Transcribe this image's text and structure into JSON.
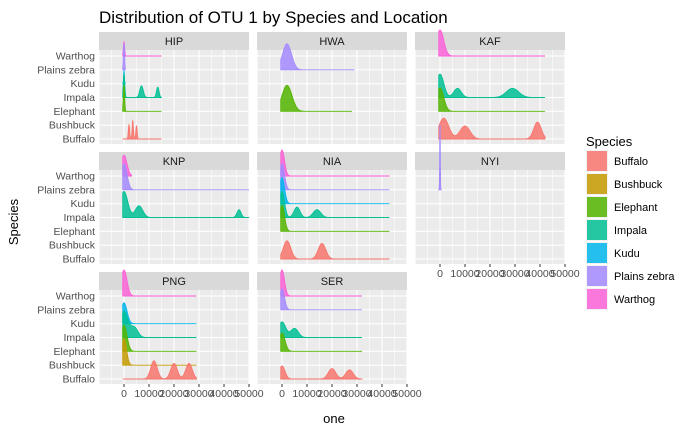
{
  "chart_data": {
    "type": "area",
    "title": "Distribution of OTU 1 by Species and Location",
    "xlabel": "one",
    "ylabel": "Species",
    "xlim": [
      -10000,
      50000
    ],
    "x_tick_labels": [
      "0",
      "10000",
      "20000",
      "30000",
      "40000",
      "50000"
    ],
    "species": [
      "Buffalo",
      "Bushbuck",
      "Elephant",
      "Impala",
      "Kudu",
      "Plains zebra",
      "Warthog"
    ],
    "colors": {
      "Buffalo": "#F8766D",
      "Bushbuck": "#C49A00",
      "Elephant": "#53B400",
      "Impala": "#00C094",
      "Kudu": "#00B6EB",
      "Plains zebra": "#A58AFF",
      "Warthog": "#FB61D7"
    },
    "legend": {
      "title": "Species",
      "position": "right"
    },
    "grid": true,
    "panels": [
      {
        "name": "HIP",
        "series": [
          {
            "species": "Warthog",
            "max": 15000,
            "peaks": [
              [
                0,
                0.55,
                250
              ]
            ]
          },
          {
            "species": "Plains zebra",
            "max": 500,
            "peaks": [
              [
                0,
                1.0,
                220
              ]
            ]
          },
          {
            "species": "Kudu",
            "max": 300,
            "peaks": [
              [
                0,
                0.5,
                150
              ]
            ]
          },
          {
            "species": "Impala",
            "max": 15000,
            "peaks": [
              [
                0,
                0.9,
                300
              ],
              [
                7000,
                0.45,
                700
              ],
              [
                13500,
                0.4,
                500
              ]
            ]
          },
          {
            "species": "Elephant",
            "max": 15000,
            "peaks": [
              [
                0,
                1.0,
                250
              ]
            ]
          },
          {
            "species": "Buffalo",
            "max": 15000,
            "peaks": [
              [
                2000,
                0.55,
                250
              ],
              [
                3500,
                0.7,
                250
              ],
              [
                5000,
                0.5,
                250
              ]
            ]
          }
        ]
      },
      {
        "name": "HWA",
        "series": [
          {
            "species": "Plains zebra",
            "max": 29000,
            "peaks": [
              [
                2000,
                1.0,
                1800
              ]
            ]
          },
          {
            "species": "Elephant",
            "max": 28000,
            "peaks": [
              [
                2000,
                1.0,
                2000
              ]
            ]
          }
        ]
      },
      {
        "name": "KAF",
        "series": [
          {
            "species": "Warthog",
            "max": 42000,
            "peaks": [
              [
                0,
                1.0,
                1500
              ]
            ]
          },
          {
            "species": "Impala",
            "max": 42000,
            "peaks": [
              [
                0,
                0.9,
                1500
              ],
              [
                7000,
                0.35,
                1500
              ],
              [
                29000,
                0.35,
                2500
              ]
            ]
          },
          {
            "species": "Elephant",
            "max": 42000,
            "peaks": [
              [
                0,
                0.9,
                1500
              ]
            ]
          },
          {
            "species": "Buffalo",
            "max": 42000,
            "peaks": [
              [
                1500,
                0.8,
                2000
              ],
              [
                10000,
                0.5,
                2000
              ],
              [
                39000,
                0.65,
                1500
              ]
            ]
          }
        ]
      },
      {
        "name": "KNP",
        "series": [
          {
            "species": "Warthog",
            "max": 3000,
            "peaks": [
              [
                0,
                0.8,
                1200
              ]
            ]
          },
          {
            "species": "Plains zebra",
            "max": 50000,
            "peaks": [
              [
                0,
                1.0,
                1200
              ]
            ]
          },
          {
            "species": "Impala",
            "max": 50000,
            "peaks": [
              [
                0,
                1.0,
                1500
              ],
              [
                6000,
                0.45,
                1500
              ],
              [
                46000,
                0.3,
                800
              ]
            ]
          }
        ]
      },
      {
        "name": "NIA",
        "series": [
          {
            "species": "Warthog",
            "max": 43000,
            "peaks": [
              [
                0,
                1.0,
                1000
              ]
            ]
          },
          {
            "species": "Plains zebra",
            "max": 43000,
            "peaks": [
              [
                0,
                1.0,
                1000
              ]
            ]
          },
          {
            "species": "Kudu",
            "max": 43000,
            "peaks": [
              [
                0,
                1.0,
                1000
              ]
            ]
          },
          {
            "species": "Impala",
            "max": 43000,
            "peaks": [
              [
                0,
                1.0,
                1000
              ],
              [
                6000,
                0.4,
                1200
              ],
              [
                14000,
                0.3,
                1500
              ]
            ]
          },
          {
            "species": "Elephant",
            "max": 43000,
            "peaks": [
              [
                0,
                1.0,
                1000
              ]
            ]
          },
          {
            "species": "Buffalo",
            "max": 43000,
            "peaks": [
              [
                2000,
                0.7,
                1500
              ],
              [
                16000,
                0.6,
                1500
              ]
            ]
          }
        ]
      },
      {
        "name": "NYI",
        "series": [
          {
            "species": "Plains zebra",
            "max": 0,
            "peaks": [
              [
                0,
                2.5,
                120
              ]
            ]
          }
        ]
      },
      {
        "name": "PNG",
        "series": [
          {
            "species": "Warthog",
            "max": 29000,
            "peaks": [
              [
                0,
                1.0,
                1200
              ]
            ]
          },
          {
            "species": "Kudu",
            "max": 29000,
            "peaks": [
              [
                0,
                0.8,
                1200
              ]
            ]
          },
          {
            "species": "Impala",
            "max": 29000,
            "peaks": [
              [
                0,
                1.0,
                1500
              ],
              [
                4000,
                0.4,
                1500
              ]
            ]
          },
          {
            "species": "Elephant",
            "max": 29000,
            "peaks": [
              [
                0,
                1.0,
                1200
              ]
            ]
          },
          {
            "species": "Bushbuck",
            "max": 29000,
            "peaks": [
              [
                0,
                1.0,
                1000
              ]
            ]
          },
          {
            "species": "Buffalo",
            "max": 29000,
            "peaks": [
              [
                12000,
                0.7,
                1300
              ],
              [
                20000,
                0.6,
                1300
              ],
              [
                26000,
                0.6,
                1300
              ]
            ]
          }
        ]
      },
      {
        "name": "SER",
        "series": [
          {
            "species": "Warthog",
            "max": 32000,
            "peaks": [
              [
                0,
                1.0,
                1000
              ]
            ]
          },
          {
            "species": "Plains zebra",
            "max": 32000,
            "peaks": [
              [
                0,
                0.8,
                1000
              ]
            ]
          },
          {
            "species": "Impala",
            "max": 32000,
            "peaks": [
              [
                0,
                0.6,
                1500
              ],
              [
                5000,
                0.35,
                1500
              ]
            ]
          },
          {
            "species": "Elephant",
            "max": 32000,
            "peaks": [
              [
                0,
                0.7,
                1200
              ]
            ]
          },
          {
            "species": "Buffalo",
            "max": 32000,
            "peaks": [
              [
                0,
                0.5,
                1200
              ],
              [
                20000,
                0.4,
                1500
              ],
              [
                27000,
                0.35,
                1500
              ]
            ]
          }
        ]
      }
    ]
  }
}
